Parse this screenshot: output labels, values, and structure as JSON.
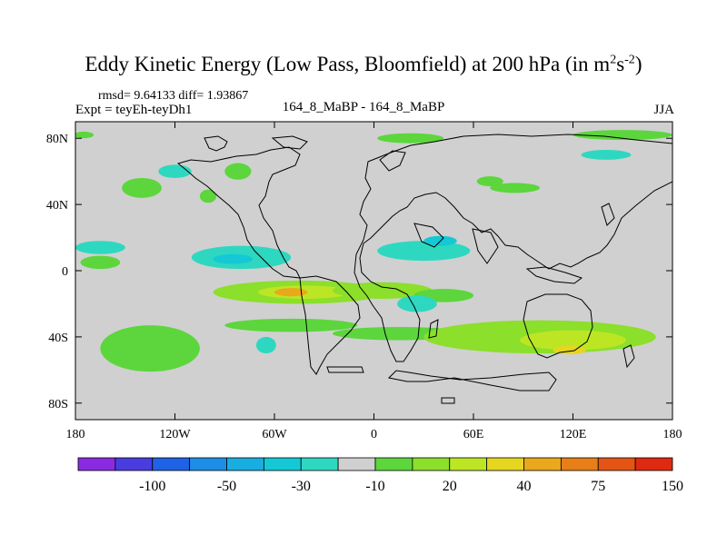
{
  "title": {
    "main": "Eddy Kinetic Energy (Low Pass, Bloomfield) at 200 hPa (in m",
    "sup1": "2",
    "mid": "s",
    "sup2": "-2",
    "close": ")"
  },
  "stats_line": "rmsd= 9.64133 diff= 1.93867",
  "expt_label": "Expt = teyEh-teyDh1",
  "case_label": "164_8_MaBP - 164_8_MaBP",
  "season_label": "JJA",
  "colors": {
    "background_field": "#d0d0d0",
    "coastline": "#000000"
  },
  "chart_data": {
    "type": "heatmap",
    "title": "Eddy Kinetic Energy (Low Pass, Bloomfield) at 200 hPa (in m2s-2)",
    "xlabel": "",
    "ylabel": "",
    "x_range": [
      -180,
      180
    ],
    "y_range": [
      -90,
      90
    ],
    "x_ticks": [
      {
        "value": -180,
        "label": "180"
      },
      {
        "value": -120,
        "label": "120W"
      },
      {
        "value": -60,
        "label": "60W"
      },
      {
        "value": 0,
        "label": "0"
      },
      {
        "value": 60,
        "label": "60E"
      },
      {
        "value": 120,
        "label": "120E"
      },
      {
        "value": 180,
        "label": "180"
      }
    ],
    "y_ticks": [
      {
        "value": 80,
        "label": "80N"
      },
      {
        "value": 40,
        "label": "40N"
      },
      {
        "value": 0,
        "label": "0"
      },
      {
        "value": -40,
        "label": "40S"
      },
      {
        "value": -80,
        "label": "80S"
      }
    ],
    "colorbar": {
      "colors": [
        "#8a2be2",
        "#4a3de0",
        "#1f62e6",
        "#1c8ee6",
        "#18aee0",
        "#14c8d6",
        "#2ed8c0",
        "#d0d0d0",
        "#5cd63c",
        "#8cdf2a",
        "#bce624",
        "#e6d620",
        "#eaa81c",
        "#e87e18",
        "#e45414",
        "#de2a10"
      ],
      "labels": [
        "-100",
        "-50",
        "-30",
        "-10",
        "20",
        "40",
        "75",
        "150"
      ]
    },
    "regions": [
      {
        "name": "tropical-jet-east-pacific",
        "lon": -45,
        "lat": -13,
        "rlon": 52,
        "rlat": 7,
        "bin": 9
      },
      {
        "name": "tropical-jet-core",
        "lon": -42,
        "lat": -13,
        "rlon": 28,
        "rlat": 4,
        "bin": 10
      },
      {
        "name": "tropical-jet-max",
        "lon": -50,
        "lat": -13,
        "rlon": 10,
        "rlat": 2.5,
        "bin": 12
      },
      {
        "name": "tropical-jet-atlantic",
        "lon": 5,
        "lat": -12,
        "rlon": 30,
        "rlat": 5,
        "bin": 9
      },
      {
        "name": "tropical-jet-africa",
        "lon": 42,
        "lat": -15,
        "rlon": 18,
        "rlat": 4,
        "bin": 8
      },
      {
        "name": "south-pacific-band",
        "lon": -50,
        "lat": -33,
        "rlon": 40,
        "rlat": 4,
        "bin": 8
      },
      {
        "name": "south-atlantic-band",
        "lon": 15,
        "lat": -38,
        "rlon": 40,
        "rlat": 4,
        "bin": 8
      },
      {
        "name": "indian-ocean-band",
        "lon": 100,
        "lat": -40,
        "rlon": 70,
        "rlat": 10,
        "bin": 9
      },
      {
        "name": "indian-ocean-core",
        "lon": 120,
        "lat": -42,
        "rlon": 32,
        "rlat": 6,
        "bin": 10
      },
      {
        "name": "indian-ocean-max",
        "lon": 118,
        "lat": -48,
        "rlon": 10,
        "rlat": 2.5,
        "bin": 11
      },
      {
        "name": "south-pacific-west",
        "lon": -135,
        "lat": -47,
        "rlon": 30,
        "rlat": 14,
        "bin": 8
      },
      {
        "name": "north-pacific-blob",
        "lon": -140,
        "lat": 50,
        "rlon": 12,
        "rlat": 6,
        "bin": 8
      },
      {
        "name": "north-pacific-blob-2",
        "lon": -82,
        "lat": 60,
        "rlon": 8,
        "rlat": 5,
        "bin": 8
      },
      {
        "name": "north-america-blob",
        "lon": -100,
        "lat": 45,
        "rlon": 5,
        "rlat": 4,
        "bin": 8
      },
      {
        "name": "north-atlantic-blob",
        "lon": 22,
        "lat": 80,
        "rlon": 20,
        "rlat": 3,
        "bin": 8
      },
      {
        "name": "europe-blob",
        "lon": 70,
        "lat": 54,
        "rlon": 8,
        "rlat": 3,
        "bin": 8
      },
      {
        "name": "asia-north-blob",
        "lon": 85,
        "lat": 50,
        "rlon": 15,
        "rlat": 3,
        "bin": 8
      },
      {
        "name": "tropical-west-pacific",
        "lon": -165,
        "lat": 5,
        "rlon": 12,
        "rlat": 4,
        "bin": 8
      },
      {
        "name": "arctic-east",
        "lon": 150,
        "lat": 82,
        "rlon": 30,
        "rlat": 3,
        "bin": 8
      },
      {
        "name": "arctic-west",
        "lon": -175,
        "lat": 82,
        "rlon": 6,
        "rlat": 2,
        "bin": 8
      },
      {
        "name": "west-pacific-minus",
        "lon": -80,
        "lat": 8,
        "rlon": 30,
        "rlat": 7,
        "bin": 6
      },
      {
        "name": "west-pacific-minus-core",
        "lon": -85,
        "lat": 7,
        "rlon": 12,
        "rlat": 3,
        "bin": 5
      },
      {
        "name": "atlantic-minus",
        "lon": 30,
        "lat": 12,
        "rlon": 28,
        "rlat": 6,
        "bin": 6
      },
      {
        "name": "atlantic-minus-2",
        "lon": 40,
        "lat": 18,
        "rlon": 10,
        "rlat": 3,
        "bin": 5
      },
      {
        "name": "pacific-north-minus",
        "lon": -120,
        "lat": 60,
        "rlon": 10,
        "rlat": 4,
        "bin": 6
      },
      {
        "name": "africa-minus",
        "lon": 26,
        "lat": -20,
        "rlon": 12,
        "rlat": 5,
        "bin": 6
      },
      {
        "name": "south-minus",
        "lon": -65,
        "lat": -45,
        "rlon": 6,
        "rlat": 5,
        "bin": 6
      },
      {
        "name": "east-pacific-minus",
        "lon": -165,
        "lat": 14,
        "rlon": 15,
        "rlat": 4,
        "bin": 6
      },
      {
        "name": "asia-minus",
        "lon": 140,
        "lat": 70,
        "rlon": 15,
        "rlat": 3,
        "bin": 6
      }
    ]
  }
}
